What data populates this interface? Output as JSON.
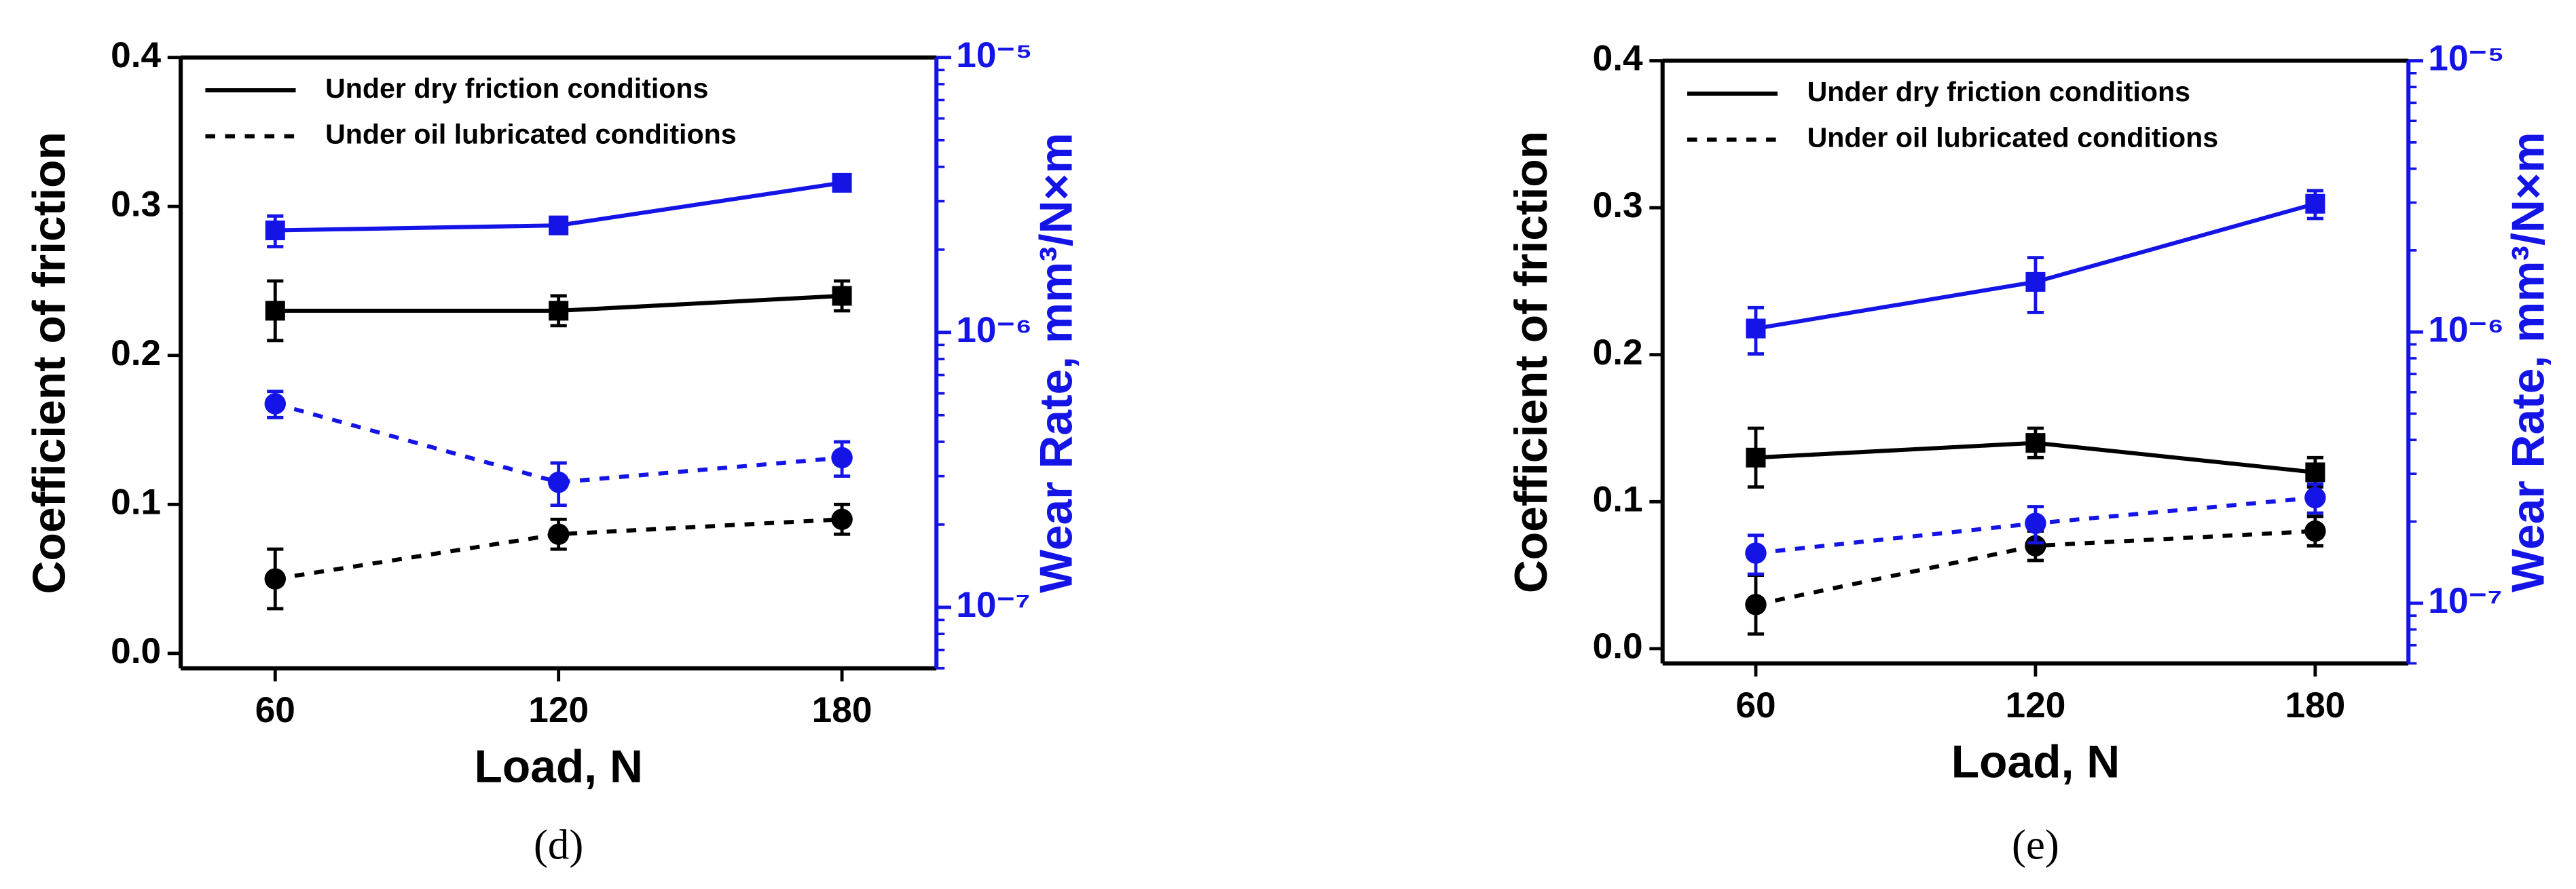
{
  "chart_data": [
    {
      "type": "line",
      "caption": "(d)",
      "xlabel": "Load, N",
      "ylabel": "Coefficient of friction",
      "y2label": "Wear Rate, mm³/N×m",
      "x": [
        60,
        120,
        180
      ],
      "xlim": [
        40,
        200
      ],
      "xticks": [
        60,
        120,
        180
      ],
      "ylim": [
        -0.01,
        0.4
      ],
      "yticks": [
        {
          "value": 0,
          "label": "0.0"
        },
        0.1,
        0.2,
        0.3,
        0.4
      ],
      "y2lim": [
        6e-08,
        1e-05
      ],
      "y2scale": "log",
      "y2ticks": [
        {
          "value": 1e-07,
          "label": "10⁻⁷"
        },
        {
          "value": 1e-06,
          "label": "10⁻⁶"
        },
        {
          "value": 1e-05,
          "label": "10⁻⁵"
        }
      ],
      "y2color": "#1414e6",
      "legend": {
        "position": "upper left",
        "entries": [
          {
            "label": "Under dry friction conditions",
            "line": "solid"
          },
          {
            "label": "Under oil lubricated conditions",
            "line": "dashed"
          }
        ]
      },
      "series": [
        {
          "color": "#000000",
          "marker": "square",
          "line": "solid",
          "axis": "y",
          "values": [
            0.23,
            0.23,
            0.24
          ],
          "errors": [
            0.02,
            0.01,
            0.01
          ]
        },
        {
          "color": "#000000",
          "marker": "circle",
          "line": "dashed",
          "axis": "y",
          "values": [
            0.05,
            0.08,
            0.09
          ],
          "errors": [
            0.02,
            0.01,
            0.01
          ]
        },
        {
          "color": "#1414e6",
          "marker": "square",
          "line": "solid",
          "axis": "y2",
          "values": [
            2.35e-06,
            2.45e-06,
            3.5e-06
          ],
          "errors": [
            3e-07,
            1.5e-07,
            1.5e-07
          ]
        },
        {
          "color": "#1414e6",
          "marker": "circle",
          "line": "dashed",
          "axis": "y2",
          "values": [
            5.5e-07,
            2.85e-07,
            3.5e-07
          ],
          "errors": [
            6e-08,
            5e-08,
            5e-08
          ]
        }
      ]
    },
    {
      "type": "line",
      "caption": "(e)",
      "xlabel": "Load, N",
      "ylabel": "Coefficient of friction",
      "y2label": "Wear Rate, mm³/N×m",
      "x": [
        60,
        120,
        180
      ],
      "xlim": [
        40,
        200
      ],
      "xticks": [
        60,
        120,
        180
      ],
      "ylim": [
        -0.01,
        0.4
      ],
      "yticks": [
        {
          "value": 0,
          "label": "0.0"
        },
        0.1,
        0.2,
        0.3,
        0.4
      ],
      "y2lim": [
        6e-08,
        1e-05
      ],
      "y2scale": "log",
      "y2ticks": [
        {
          "value": 1e-07,
          "label": "10⁻⁷"
        },
        {
          "value": 1e-06,
          "label": "10⁻⁶"
        },
        {
          "value": 1e-05,
          "label": "10⁻⁵"
        }
      ],
      "y2color": "#1414e6",
      "legend": {
        "position": "upper left",
        "entries": [
          {
            "label": "Under dry friction conditions",
            "line": "solid"
          },
          {
            "label": "Under oil lubricated conditions",
            "line": "dashed"
          }
        ]
      },
      "series": [
        {
          "color": "#000000",
          "marker": "square",
          "line": "solid",
          "axis": "y",
          "values": [
            0.13,
            0.14,
            0.12
          ],
          "errors": [
            0.02,
            0.01,
            0.01
          ]
        },
        {
          "color": "#000000",
          "marker": "circle",
          "line": "dashed",
          "axis": "y",
          "values": [
            0.03,
            0.07,
            0.08
          ],
          "errors": [
            0.02,
            0.01,
            0.01
          ]
        },
        {
          "color": "#1414e6",
          "marker": "square",
          "line": "solid",
          "axis": "y2",
          "values": [
            1.03e-06,
            1.53e-06,
            2.97e-06
          ],
          "errors": [
            2e-07,
            3.5e-07,
            3.5e-07
          ]
        },
        {
          "color": "#1414e6",
          "marker": "circle",
          "line": "dashed",
          "axis": "y2",
          "values": [
            1.53e-07,
            1.97e-07,
            2.45e-07
          ],
          "errors": [
            2.5e-08,
            3e-08,
            3e-08
          ]
        }
      ]
    }
  ]
}
